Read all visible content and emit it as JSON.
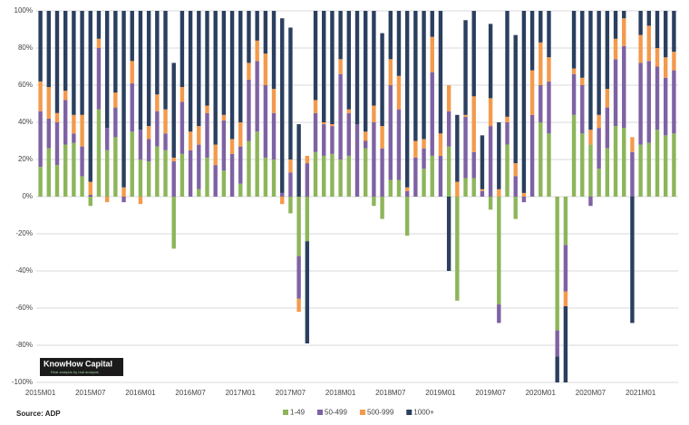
{
  "chart_data": {
    "type": "bar",
    "stacked": true,
    "source": "Source: ADP",
    "logo": {
      "name": "KnowHow Capital",
      "tagline": "Real analysis by real analysts"
    },
    "categories": [
      "2015M01",
      null,
      null,
      null,
      null,
      null,
      "2015M07",
      null,
      null,
      null,
      null,
      null,
      "2016M01",
      null,
      null,
      null,
      null,
      null,
      "2016M07",
      null,
      null,
      null,
      null,
      null,
      "2017M01",
      null,
      null,
      null,
      null,
      null,
      "2017M07",
      null,
      null,
      null,
      null,
      null,
      "2018M01",
      null,
      null,
      null,
      null,
      null,
      "2018M07",
      null,
      null,
      null,
      null,
      null,
      "2019M01",
      null,
      null,
      null,
      null,
      null,
      "2019M07",
      null,
      null,
      null,
      null,
      null,
      "2020M01",
      null,
      null,
      null,
      null,
      null,
      "2020M07",
      null,
      null,
      null,
      null,
      null,
      "2021M01",
      null,
      null,
      null,
      null
    ],
    "series": [
      {
        "name": "1-49",
        "color": "#8db55a",
        "values": [
          16,
          26,
          17,
          28,
          29,
          11,
          -5,
          47,
          25,
          32,
          0,
          35,
          20,
          19,
          27,
          25,
          -28,
          23,
          0,
          4,
          21,
          0,
          14,
          0,
          7,
          30,
          35,
          21,
          20,
          0,
          -9,
          -32,
          -24,
          24,
          22,
          23,
          20,
          22,
          0,
          26,
          -5,
          -12,
          9,
          9,
          -21,
          0,
          15,
          22,
          0,
          27,
          -56,
          10,
          10,
          0,
          -7,
          -58,
          28,
          -12,
          0,
          0,
          40,
          34,
          -72,
          -26,
          44,
          34,
          28,
          15,
          26,
          38,
          37,
          0,
          28,
          29,
          36,
          33,
          34
        ]
      },
      {
        "name": "50-499",
        "color": "#7e62a3",
        "values": [
          30,
          16,
          23,
          24,
          5,
          16,
          1,
          33,
          12,
          16,
          -3,
          26,
          16,
          12,
          19,
          9,
          19,
          28,
          25,
          24,
          24,
          17,
          27,
          23,
          20,
          33,
          38,
          39,
          25,
          2,
          13,
          -23,
          18,
          21,
          17,
          15,
          46,
          23,
          39,
          4,
          40,
          26,
          51,
          38,
          3,
          21,
          11,
          45,
          22,
          19,
          0,
          33,
          14,
          3,
          38,
          -10,
          12,
          11,
          -3,
          44,
          20,
          28,
          -14,
          -25,
          22,
          26,
          -5,
          22,
          22,
          36,
          44,
          24,
          44,
          44,
          34,
          31,
          34
        ]
      },
      {
        "name": "500-999",
        "color": "#f39a4c",
        "values": [
          16,
          17,
          5,
          5,
          10,
          17,
          7,
          5,
          -3,
          8,
          5,
          12,
          -4,
          7,
          9,
          13,
          2,
          8,
          10,
          10,
          4,
          11,
          3,
          8,
          13,
          9,
          11,
          17,
          13,
          -4,
          7,
          -7,
          4,
          7,
          1,
          1,
          8,
          2,
          0,
          5,
          9,
          12,
          14,
          18,
          2,
          9,
          5,
          19,
          12,
          14,
          8,
          1,
          30,
          1,
          15,
          4,
          3,
          7,
          2,
          24,
          23,
          13,
          0,
          -8,
          3,
          4,
          8,
          7,
          10,
          11,
          15,
          8,
          15,
          19,
          10,
          11,
          10
        ]
      },
      {
        "name": "1000+",
        "color": "#2b3f5f",
        "values": [
          38,
          41,
          55,
          43,
          56,
          56,
          92,
          15,
          63,
          44,
          95,
          27,
          64,
          62,
          45,
          53,
          51,
          41,
          65,
          62,
          51,
          72,
          56,
          69,
          60,
          28,
          16,
          23,
          42,
          94,
          71,
          39,
          -55,
          48,
          60,
          61,
          26,
          53,
          61,
          65,
          51,
          50,
          26,
          35,
          95,
          70,
          69,
          14,
          66,
          -40,
          36,
          51,
          46,
          29,
          40,
          36,
          57,
          69,
          98,
          32,
          17,
          25,
          -14,
          -41,
          31,
          36,
          64,
          56,
          42,
          15,
          4,
          -68,
          13,
          8,
          20,
          25,
          22
        ]
      }
    ],
    "ylim": [
      -100,
      100
    ],
    "yticks": [
      {
        "value": -100,
        "label": "-100%"
      },
      {
        "value": -80,
        "label": "-80%"
      },
      {
        "value": -60,
        "label": "-60%"
      },
      {
        "value": -40,
        "label": "-40%"
      },
      {
        "value": -20,
        "label": "-20%"
      },
      {
        "value": 0,
        "label": "0%"
      },
      {
        "value": 20,
        "label": "20%"
      },
      {
        "value": 40,
        "label": "40%"
      },
      {
        "value": 60,
        "label": "60%"
      },
      {
        "value": 80,
        "label": "80%"
      },
      {
        "value": 100,
        "label": "100%"
      }
    ],
    "grid": true,
    "legend": "bottom"
  }
}
